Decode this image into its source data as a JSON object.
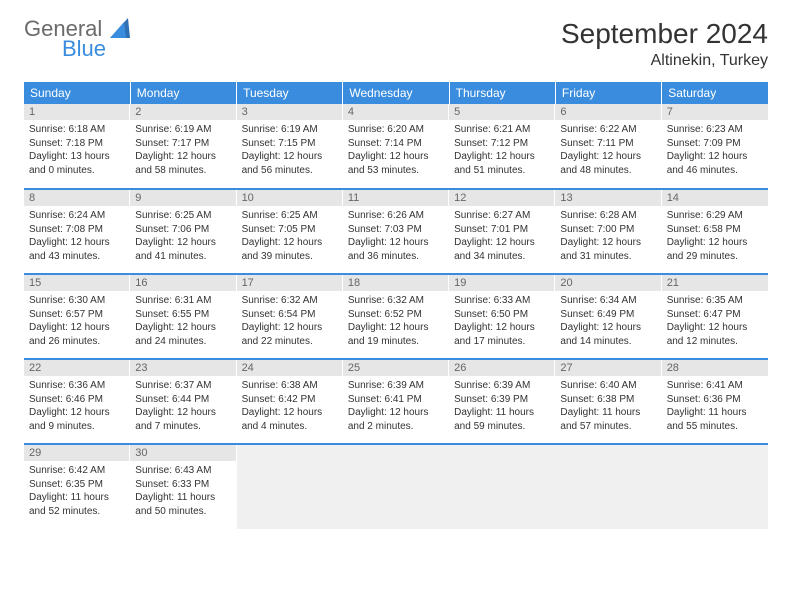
{
  "logo": {
    "top": "General",
    "bottom": "Blue"
  },
  "title": "September 2024",
  "location": "Altinekin, Turkey",
  "colors": {
    "header_bg": "#3a8dde",
    "header_fg": "#ffffff",
    "daynum_bg": "#e6e6e6",
    "daynum_fg": "#666666",
    "border": "#3a8dde",
    "text": "#333333",
    "logo_gray": "#6b6b6b",
    "logo_blue": "#3a8dde"
  },
  "weekdays": [
    "Sunday",
    "Monday",
    "Tuesday",
    "Wednesday",
    "Thursday",
    "Friday",
    "Saturday"
  ],
  "days": [
    {
      "n": 1,
      "sunrise": "6:18 AM",
      "sunset": "7:18 PM",
      "dh": 13,
      "dm": 0
    },
    {
      "n": 2,
      "sunrise": "6:19 AM",
      "sunset": "7:17 PM",
      "dh": 12,
      "dm": 58
    },
    {
      "n": 3,
      "sunrise": "6:19 AM",
      "sunset": "7:15 PM",
      "dh": 12,
      "dm": 56
    },
    {
      "n": 4,
      "sunrise": "6:20 AM",
      "sunset": "7:14 PM",
      "dh": 12,
      "dm": 53
    },
    {
      "n": 5,
      "sunrise": "6:21 AM",
      "sunset": "7:12 PM",
      "dh": 12,
      "dm": 51
    },
    {
      "n": 6,
      "sunrise": "6:22 AM",
      "sunset": "7:11 PM",
      "dh": 12,
      "dm": 48
    },
    {
      "n": 7,
      "sunrise": "6:23 AM",
      "sunset": "7:09 PM",
      "dh": 12,
      "dm": 46
    },
    {
      "n": 8,
      "sunrise": "6:24 AM",
      "sunset": "7:08 PM",
      "dh": 12,
      "dm": 43
    },
    {
      "n": 9,
      "sunrise": "6:25 AM",
      "sunset": "7:06 PM",
      "dh": 12,
      "dm": 41
    },
    {
      "n": 10,
      "sunrise": "6:25 AM",
      "sunset": "7:05 PM",
      "dh": 12,
      "dm": 39
    },
    {
      "n": 11,
      "sunrise": "6:26 AM",
      "sunset": "7:03 PM",
      "dh": 12,
      "dm": 36
    },
    {
      "n": 12,
      "sunrise": "6:27 AM",
      "sunset": "7:01 PM",
      "dh": 12,
      "dm": 34
    },
    {
      "n": 13,
      "sunrise": "6:28 AM",
      "sunset": "7:00 PM",
      "dh": 12,
      "dm": 31
    },
    {
      "n": 14,
      "sunrise": "6:29 AM",
      "sunset": "6:58 PM",
      "dh": 12,
      "dm": 29
    },
    {
      "n": 15,
      "sunrise": "6:30 AM",
      "sunset": "6:57 PM",
      "dh": 12,
      "dm": 26
    },
    {
      "n": 16,
      "sunrise": "6:31 AM",
      "sunset": "6:55 PM",
      "dh": 12,
      "dm": 24
    },
    {
      "n": 17,
      "sunrise": "6:32 AM",
      "sunset": "6:54 PM",
      "dh": 12,
      "dm": 22
    },
    {
      "n": 18,
      "sunrise": "6:32 AM",
      "sunset": "6:52 PM",
      "dh": 12,
      "dm": 19
    },
    {
      "n": 19,
      "sunrise": "6:33 AM",
      "sunset": "6:50 PM",
      "dh": 12,
      "dm": 17
    },
    {
      "n": 20,
      "sunrise": "6:34 AM",
      "sunset": "6:49 PM",
      "dh": 12,
      "dm": 14
    },
    {
      "n": 21,
      "sunrise": "6:35 AM",
      "sunset": "6:47 PM",
      "dh": 12,
      "dm": 12
    },
    {
      "n": 22,
      "sunrise": "6:36 AM",
      "sunset": "6:46 PM",
      "dh": 12,
      "dm": 9
    },
    {
      "n": 23,
      "sunrise": "6:37 AM",
      "sunset": "6:44 PM",
      "dh": 12,
      "dm": 7
    },
    {
      "n": 24,
      "sunrise": "6:38 AM",
      "sunset": "6:42 PM",
      "dh": 12,
      "dm": 4
    },
    {
      "n": 25,
      "sunrise": "6:39 AM",
      "sunset": "6:41 PM",
      "dh": 12,
      "dm": 2
    },
    {
      "n": 26,
      "sunrise": "6:39 AM",
      "sunset": "6:39 PM",
      "dh": 11,
      "dm": 59
    },
    {
      "n": 27,
      "sunrise": "6:40 AM",
      "sunset": "6:38 PM",
      "dh": 11,
      "dm": 57
    },
    {
      "n": 28,
      "sunrise": "6:41 AM",
      "sunset": "6:36 PM",
      "dh": 11,
      "dm": 55
    },
    {
      "n": 29,
      "sunrise": "6:42 AM",
      "sunset": "6:35 PM",
      "dh": 11,
      "dm": 52
    },
    {
      "n": 30,
      "sunrise": "6:43 AM",
      "sunset": "6:33 PM",
      "dh": 11,
      "dm": 50
    }
  ],
  "labels": {
    "sunrise": "Sunrise:",
    "sunset": "Sunset:",
    "daylight": "Daylight:",
    "hours": "hours",
    "and": "and",
    "minutes": "minutes."
  },
  "grid": {
    "start_weekday": 0,
    "rows": 5,
    "cols": 7
  }
}
